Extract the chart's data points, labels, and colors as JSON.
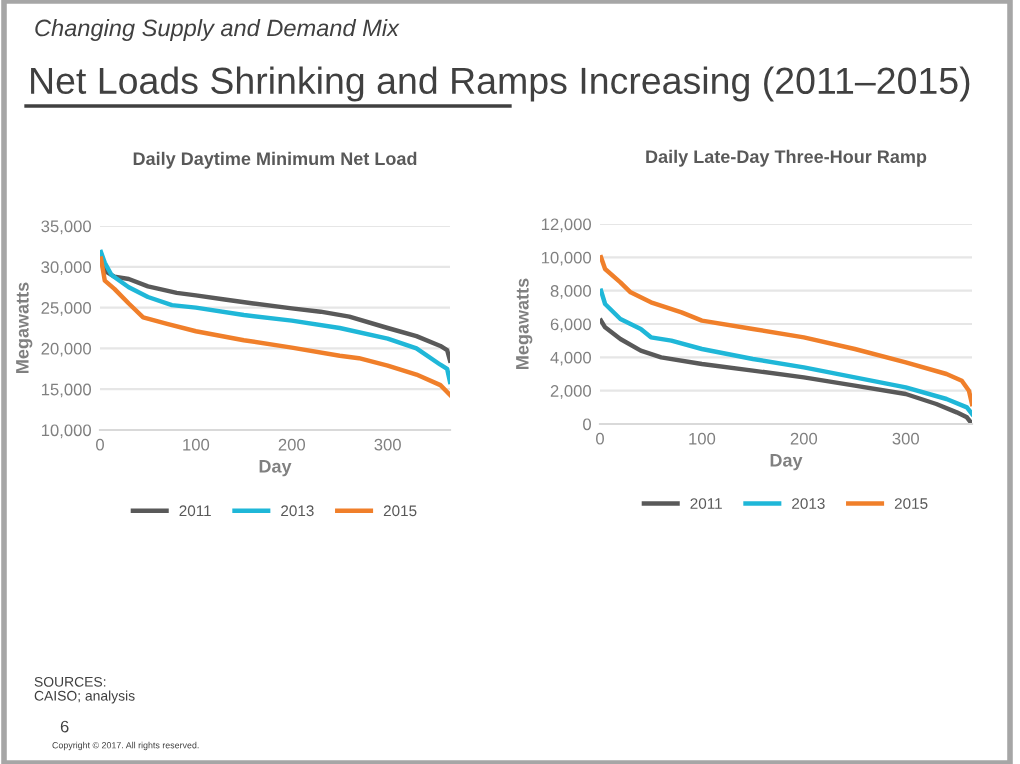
{
  "chart_data": [
    {
      "type": "other",
      "title": "Net Loads Shrinking and Ramps Increasing (2011–2015)",
      "subtitle": "Changing Supply and Demand Mix",
      "annotations": [
        "SOURCES:\nCAISO; analysis",
        "6",
        "Copyright © 2017. All rights reserved."
      ]
    },
    {
      "type": "line",
      "title": "Daily Daytime Minimum Net Load",
      "xlabel": "Day",
      "ylabel": "Megawatts",
      "xlim": [
        0,
        365
      ],
      "xticks": [
        0,
        100,
        200,
        300
      ],
      "ylim": [
        10000,
        35000
      ],
      "yticks": [
        {
          "value": 10000,
          "label": "10,000"
        },
        {
          "value": 15000,
          "label": "15,000"
        },
        {
          "value": 20000,
          "label": "20,000"
        },
        {
          "value": 25000,
          "label": "25,000"
        },
        {
          "value": 30000,
          "label": "30,000"
        },
        {
          "value": 35000,
          "label": "35,000"
        }
      ],
      "grid": "y",
      "legend": "bottom",
      "series": [
        {
          "name": "2011",
          "color": "#595959",
          "x": [
            1,
            5,
            15,
            30,
            50,
            80,
            100,
            130,
            160,
            200,
            230,
            260,
            300,
            330,
            355,
            362,
            365
          ],
          "values": [
            31000,
            29500,
            28800,
            28500,
            27600,
            26800,
            26500,
            26000,
            25500,
            24900,
            24500,
            23900,
            22500,
            21500,
            20300,
            19800,
            18500
          ]
        },
        {
          "name": "2013",
          "color": "#1fb7d8",
          "x": [
            1,
            5,
            12,
            30,
            50,
            75,
            100,
            150,
            200,
            250,
            300,
            330,
            355,
            362,
            365
          ],
          "values": [
            31800,
            30500,
            29000,
            27500,
            26300,
            25300,
            25000,
            24100,
            23400,
            22500,
            21200,
            20000,
            18000,
            17500,
            15900
          ]
        },
        {
          "name": "2015",
          "color": "#f07f2a",
          "x": [
            1,
            5,
            15,
            30,
            45,
            70,
            100,
            150,
            200,
            250,
            270,
            300,
            330,
            355,
            365
          ],
          "values": [
            31000,
            28300,
            27300,
            25500,
            23800,
            23000,
            22100,
            21000,
            20100,
            19100,
            18800,
            17900,
            16800,
            15500,
            14300
          ]
        }
      ]
    },
    {
      "type": "line",
      "title": "Daily Late-Day Three-Hour Ramp",
      "xlabel": "Day",
      "ylabel": "Megawatts",
      "xlim": [
        0,
        365
      ],
      "xticks": [
        0,
        100,
        200,
        300
      ],
      "ylim": [
        0,
        12000
      ],
      "yticks": [
        0,
        {
          "value": 2000,
          "label": "2,000"
        },
        {
          "value": 4000,
          "label": "4,000"
        },
        {
          "value": 6000,
          "label": "6,000"
        },
        {
          "value": 8000,
          "label": "8,000"
        },
        {
          "value": 10000,
          "label": "10,000"
        },
        {
          "value": 12000,
          "label": "12,000"
        }
      ],
      "grid": "y",
      "legend": "bottom",
      "series": [
        {
          "name": "2011",
          "color": "#595959",
          "x": [
            1,
            5,
            20,
            40,
            60,
            100,
            150,
            200,
            250,
            300,
            330,
            350,
            360,
            365
          ],
          "values": [
            6200,
            5800,
            5100,
            4400,
            4000,
            3600,
            3200,
            2800,
            2300,
            1800,
            1200,
            700,
            400,
            0
          ]
        },
        {
          "name": "2013",
          "color": "#1fb7d8",
          "x": [
            1,
            5,
            20,
            40,
            50,
            70,
            100,
            150,
            200,
            250,
            300,
            340,
            360,
            365
          ],
          "values": [
            8000,
            7200,
            6300,
            5700,
            5200,
            5000,
            4500,
            3900,
            3400,
            2800,
            2200,
            1500,
            1000,
            600
          ]
        },
        {
          "name": "2015",
          "color": "#f07f2a",
          "x": [
            1,
            5,
            20,
            30,
            50,
            80,
            100,
            150,
            200,
            250,
            300,
            340,
            355,
            362,
            365
          ],
          "values": [
            10000,
            9300,
            8500,
            7900,
            7300,
            6700,
            6200,
            5700,
            5200,
            4500,
            3700,
            3000,
            2600,
            2000,
            1200
          ]
        }
      ]
    }
  ]
}
